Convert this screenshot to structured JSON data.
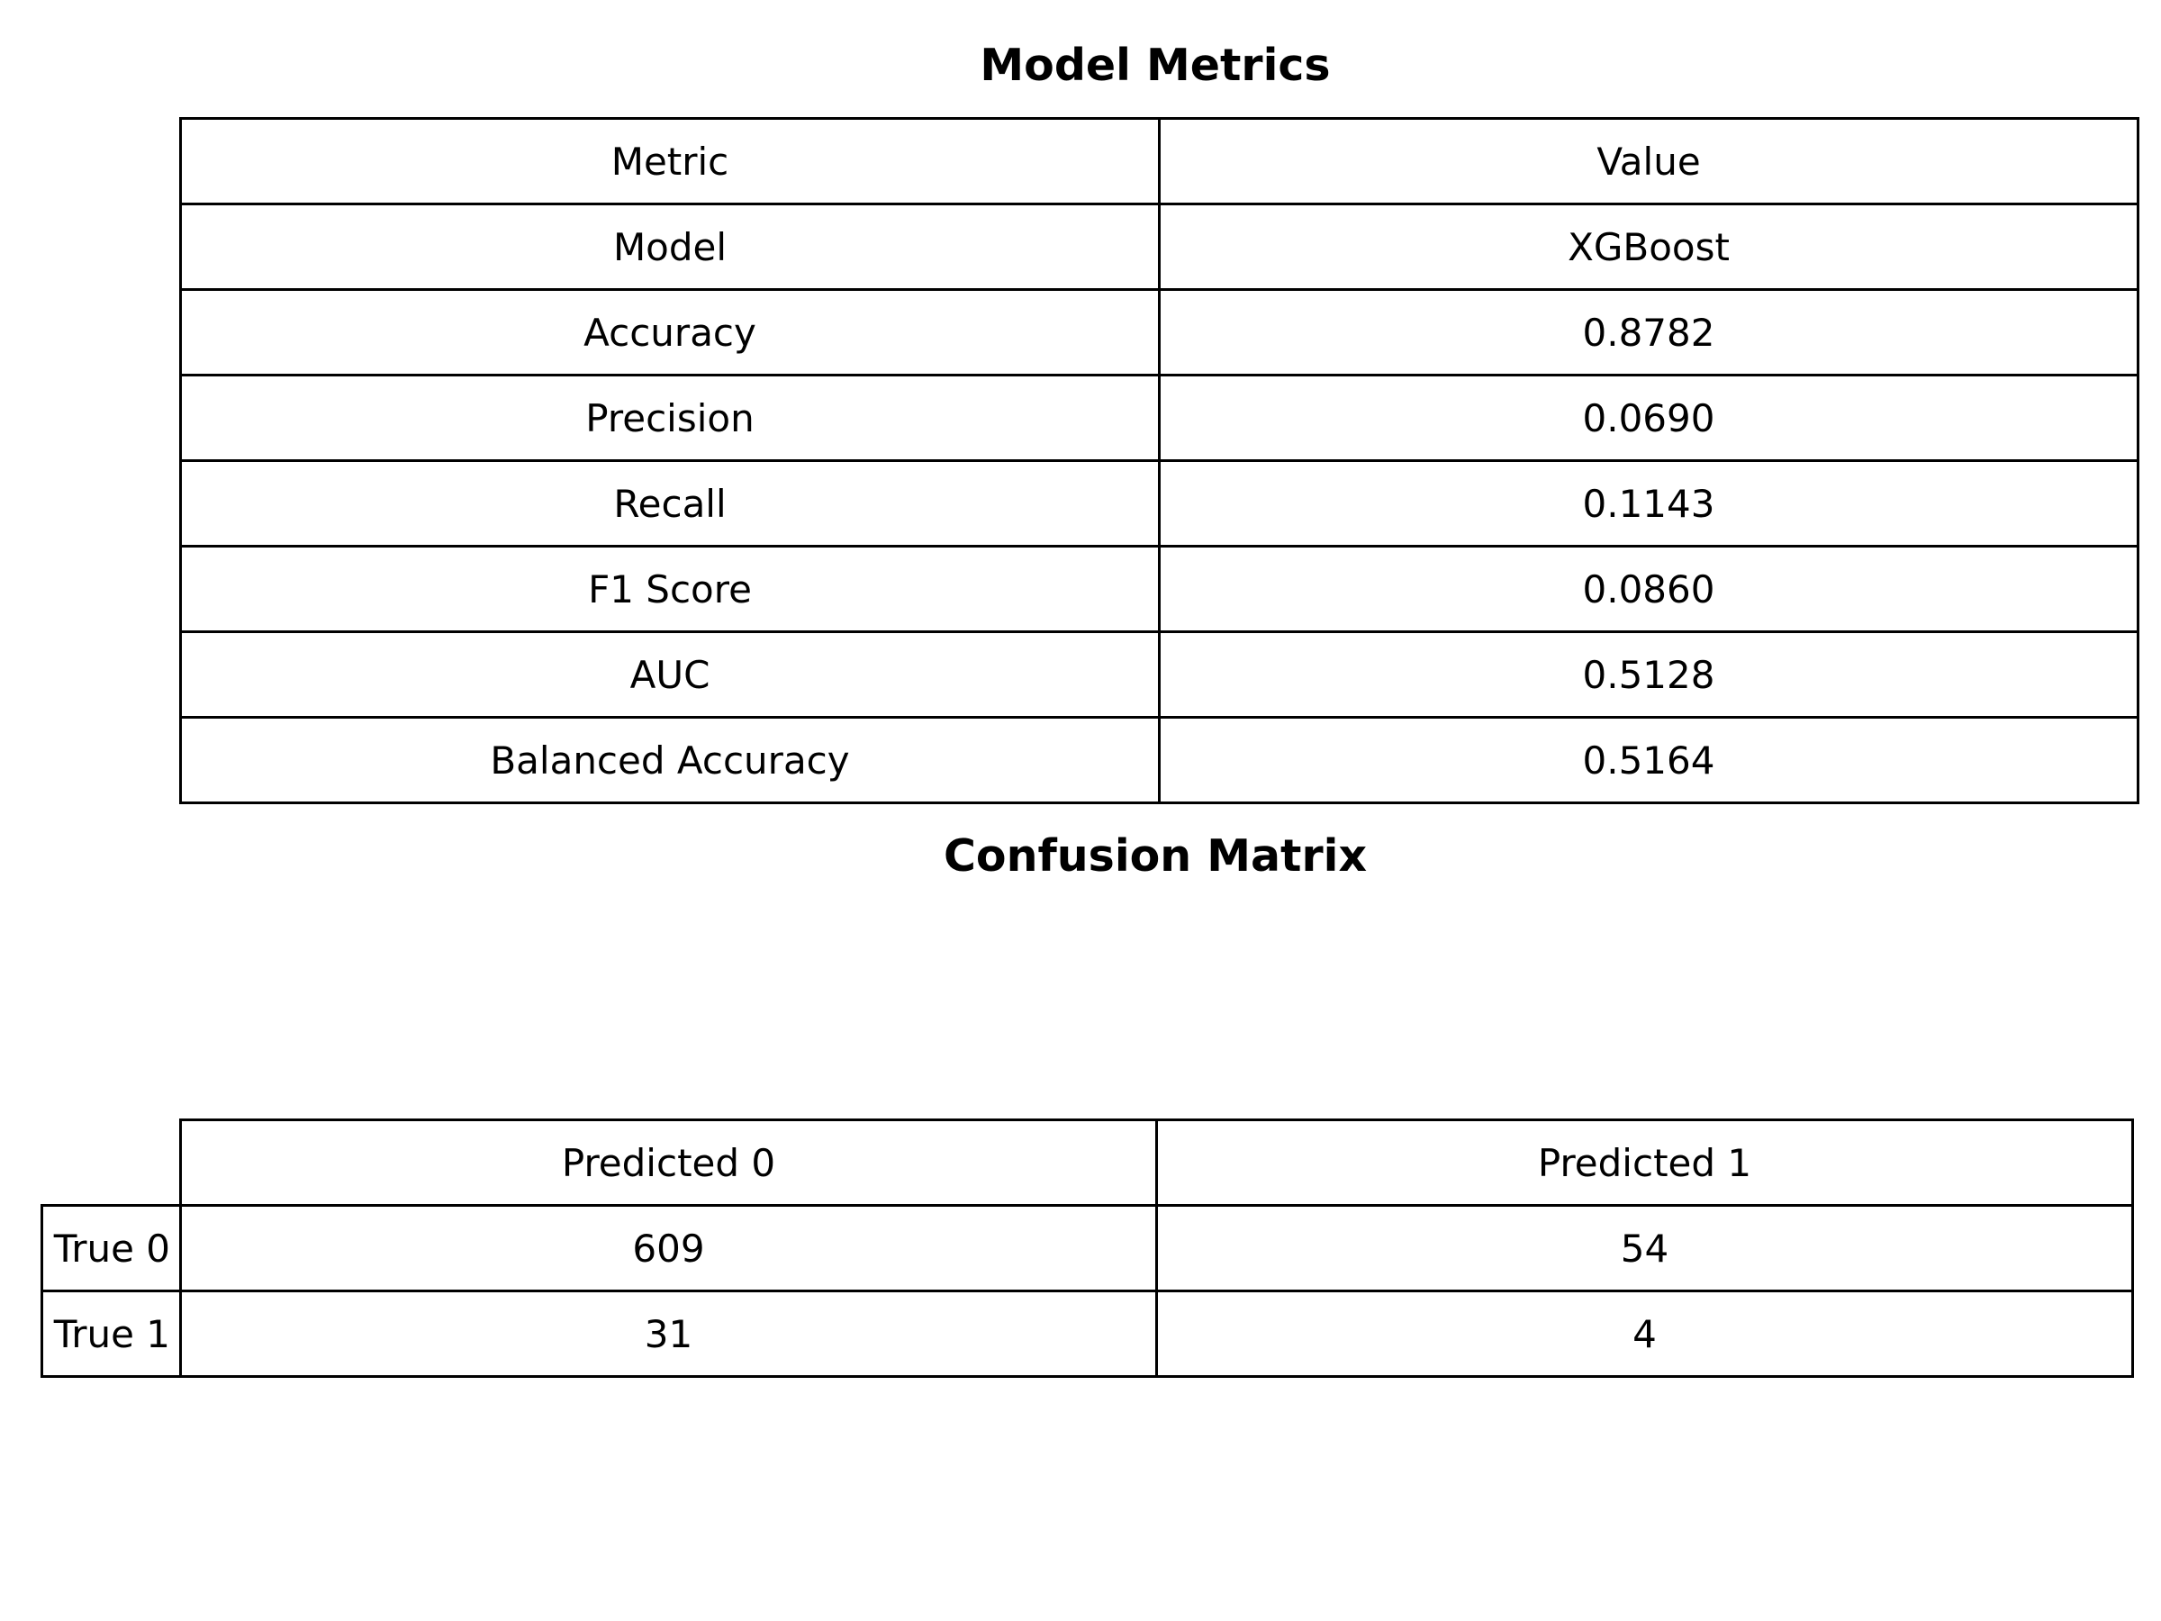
{
  "chart_data": [
    {
      "type": "table",
      "title": "Model Metrics",
      "columns": [
        "Metric",
        "Value"
      ],
      "rows": [
        [
          "Model",
          "XGBoost"
        ],
        [
          "Accuracy",
          "0.8782"
        ],
        [
          "Precision",
          "0.0690"
        ],
        [
          "Recall",
          "0.1143"
        ],
        [
          "F1 Score",
          "0.0860"
        ],
        [
          "AUC",
          "0.5128"
        ],
        [
          "Balanced Accuracy",
          "0.5164"
        ]
      ]
    },
    {
      "type": "table",
      "title": "Confusion Matrix",
      "columns": [
        "Predicted 0",
        "Predicted 1"
      ],
      "row_labels": [
        "True 0",
        "True 1"
      ],
      "values": [
        [
          609,
          54
        ],
        [
          31,
          4
        ]
      ]
    }
  ]
}
